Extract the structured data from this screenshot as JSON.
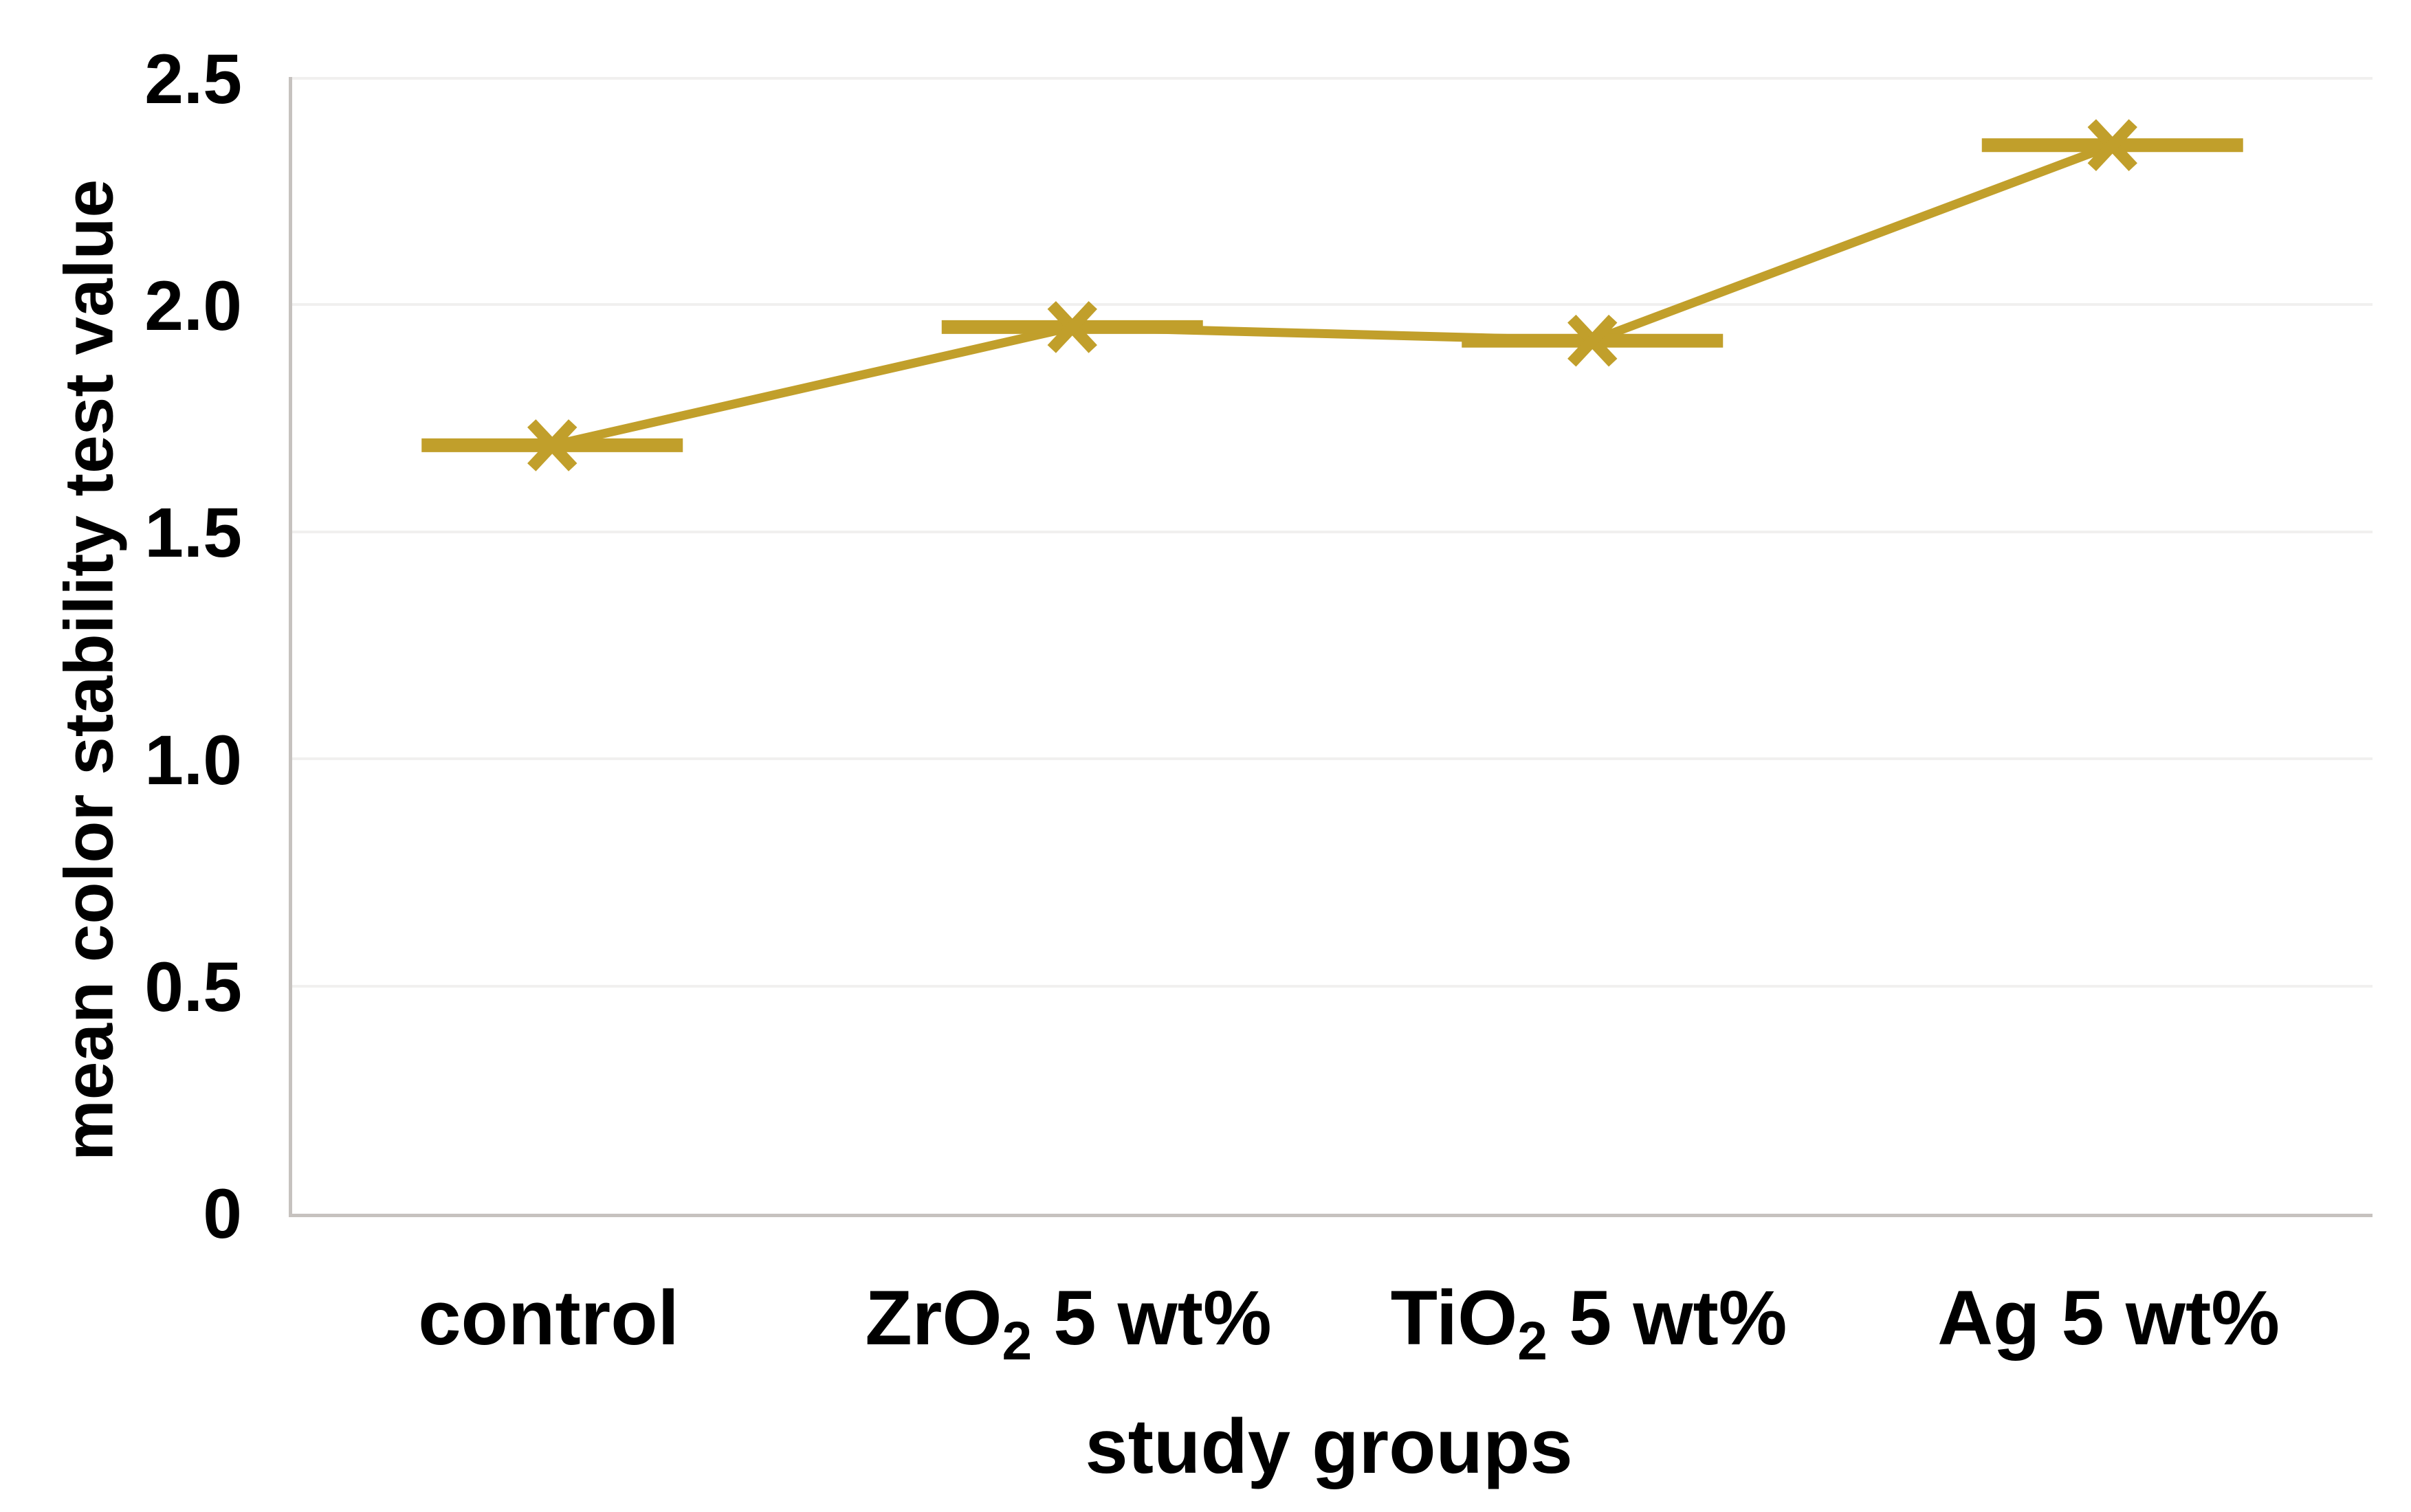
{
  "figure": {
    "background": "#ffffff"
  },
  "chart_data": {
    "type": "line",
    "title": "",
    "xlabel": "study groups",
    "ylabel": "mean color stability test value",
    "categories": [
      "control",
      "ZrO2 5 wt%",
      "TiO2 5 wt%",
      "Ag 5 wt%"
    ],
    "categories_rich": [
      {
        "pre": "control",
        "sub": "",
        "post": ""
      },
      {
        "pre": "ZrO",
        "sub": "2",
        "post": " 5 wt%"
      },
      {
        "pre": "TiO",
        "sub": "2",
        "post": " 5 wt%"
      },
      {
        "pre": "Ag",
        "sub": "",
        "post": " 5 wt%"
      }
    ],
    "series": [
      {
        "name": "mean color stability test value",
        "values": [
          1.69,
          1.95,
          1.92,
          2.35
        ]
      }
    ],
    "ylim": [
      0,
      2.5
    ],
    "ytick_values": [
      2.5,
      2.0,
      1.5,
      1.0,
      0.5,
      0
    ],
    "ytick_labels": [
      "2.5",
      "2.0",
      "1.5",
      "1.0",
      "0.5",
      "0"
    ],
    "grid": true,
    "legend": "none",
    "marker": "x-cross-with-horizontal-dash",
    "colors": {
      "series": "#C19F2B",
      "grid": "#F1F0EF",
      "axis": "#C6C2BF",
      "text": "#000000"
    }
  }
}
